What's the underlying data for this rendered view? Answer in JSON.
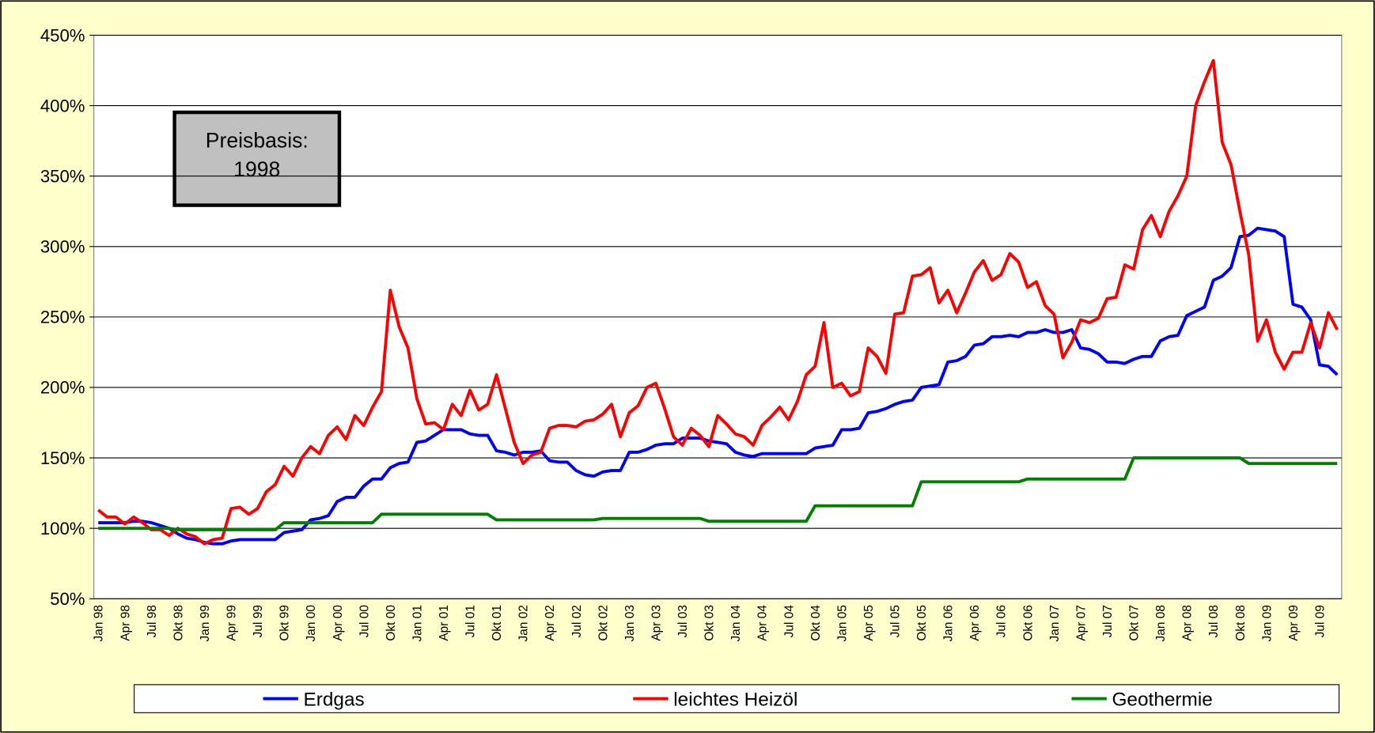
{
  "chart_data": {
    "type": "line",
    "annotation": [
      "Preisbasis:",
      "1998"
    ],
    "categories": [
      "Jan 98",
      null,
      null,
      "Apr 98",
      null,
      null,
      "Jul 98",
      null,
      null,
      "Okt 98",
      null,
      null,
      "Jan 99",
      null,
      null,
      "Apr 99",
      null,
      null,
      "Jul 99",
      null,
      null,
      "Okt 99",
      null,
      null,
      "Jan 00",
      null,
      null,
      "Apr 00",
      null,
      null,
      "Jul 00",
      null,
      null,
      "Okt 00",
      null,
      null,
      "Jan 01",
      null,
      null,
      "Apr 01",
      null,
      null,
      "Jul 01",
      null,
      null,
      "Okt 01",
      null,
      null,
      "Jan 02",
      null,
      null,
      "Apr 02",
      null,
      null,
      "Jul 02",
      null,
      null,
      "Okt 02",
      null,
      null,
      "Jan 03",
      null,
      null,
      "Apr 03",
      null,
      null,
      "Jul 03",
      null,
      null,
      "Okt 03",
      null,
      null,
      "Jan 04",
      null,
      null,
      "Apr 04",
      null,
      null,
      "Jul 04",
      null,
      null,
      "Okt 04",
      null,
      null,
      "Jan 05",
      null,
      null,
      "Apr 05",
      null,
      null,
      "Jul 05",
      null,
      null,
      "Okt 05",
      null,
      null,
      "Jan 06",
      null,
      null,
      "Apr 06",
      null,
      null,
      "Jul 06",
      null,
      null,
      "Okt 06",
      null,
      null,
      "Jan 07",
      null,
      null,
      "Apr 07",
      null,
      null,
      "Jul 07",
      null,
      null,
      "Okt 07",
      null,
      null,
      "Jan 08",
      null,
      null,
      "Apr 08",
      null,
      null,
      "Jul 08",
      null,
      null,
      "Okt 08",
      null,
      null,
      "Jan 09",
      null,
      null,
      "Apr 09",
      null,
      null,
      "Jul 09",
      null,
      null
    ],
    "series": [
      {
        "name": "Erdgas",
        "color": "#0000ff",
        "values": [
          104,
          104,
          104,
          104,
          105,
          105,
          104,
          102,
          100,
          96,
          93,
          92,
          90,
          89,
          89,
          91,
          92,
          92,
          92,
          92,
          92,
          97,
          98,
          99,
          106,
          107,
          109,
          119,
          122,
          122,
          130,
          135,
          135,
          143,
          146,
          147,
          161,
          162,
          166,
          170,
          170,
          170,
          167,
          166,
          166,
          155,
          154,
          152,
          154,
          154,
          155,
          148,
          147,
          147,
          141,
          138,
          137,
          140,
          141,
          141,
          154,
          154,
          156,
          159,
          160,
          160,
          164,
          164,
          164,
          162,
          161,
          160,
          154,
          152,
          151,
          153,
          153,
          153,
          153,
          153,
          153,
          157,
          158,
          159,
          170,
          170,
          171,
          182,
          183,
          185,
          188,
          190,
          191,
          200,
          201,
          202,
          218,
          219,
          222,
          230,
          231,
          236,
          236,
          237,
          236,
          239,
          239,
          241,
          239,
          239,
          241,
          228,
          227,
          224,
          218,
          218,
          217,
          220,
          222,
          222,
          233,
          236,
          237,
          251,
          254,
          257,
          276,
          279,
          285,
          307,
          308,
          313,
          312,
          311,
          307,
          259,
          257,
          248,
          216,
          215,
          209
        ]
      },
      {
        "name": "leichtes Heizöl",
        "color": "#ff0000",
        "values": [
          113,
          108,
          108,
          103,
          108,
          104,
          99,
          99,
          95,
          100,
          96,
          94,
          89,
          92,
          93,
          114,
          115,
          110,
          114,
          126,
          131,
          144,
          137,
          150,
          158,
          153,
          166,
          172,
          163,
          180,
          173,
          186,
          197,
          269,
          243,
          228,
          192,
          174,
          175,
          170,
          188,
          180,
          198,
          184,
          188,
          209,
          185,
          161,
          146,
          152,
          154,
          171,
          173,
          173,
          172,
          176,
          177,
          181,
          188,
          165,
          182,
          187,
          200,
          203,
          185,
          165,
          159,
          171,
          166,
          158,
          180,
          174,
          167,
          165,
          159,
          173,
          179,
          186,
          177,
          190,
          209,
          215,
          246,
          200,
          203,
          194,
          197,
          228,
          222,
          210,
          252,
          253,
          279,
          280,
          285,
          260,
          269,
          253,
          267,
          282,
          290,
          276,
          280,
          295,
          289,
          271,
          275,
          258,
          252,
          221,
          232,
          248,
          246,
          249,
          263,
          264,
          287,
          284,
          312,
          322,
          307,
          325,
          336,
          350,
          400,
          417,
          432,
          374,
          358,
          325,
          294,
          233,
          248,
          225,
          213,
          225,
          225,
          246,
          228,
          253,
          241
        ]
      },
      {
        "name": "Geothermie",
        "color": "#008000",
        "values": [
          100,
          100,
          100,
          100,
          100,
          100,
          100,
          100,
          100,
          99,
          99,
          99,
          99,
          99,
          99,
          99,
          99,
          99,
          99,
          99,
          99,
          104,
          104,
          104,
          104,
          104,
          104,
          104,
          104,
          104,
          104,
          104,
          110,
          110,
          110,
          110,
          110,
          110,
          110,
          110,
          110,
          110,
          110,
          110,
          110,
          106,
          106,
          106,
          106,
          106,
          106,
          106,
          106,
          106,
          106,
          106,
          106,
          107,
          107,
          107,
          107,
          107,
          107,
          107,
          107,
          107,
          107,
          107,
          107,
          105,
          105,
          105,
          105,
          105,
          105,
          105,
          105,
          105,
          105,
          105,
          105,
          116,
          116,
          116,
          116,
          116,
          116,
          116,
          116,
          116,
          116,
          116,
          116,
          133,
          133,
          133,
          133,
          133,
          133,
          133,
          133,
          133,
          133,
          133,
          133,
          135,
          135,
          135,
          135,
          135,
          135,
          135,
          135,
          135,
          135,
          135,
          135,
          150,
          150,
          150,
          150,
          150,
          150,
          150,
          150,
          150,
          150,
          150,
          150,
          150,
          146,
          146,
          146,
          146,
          146,
          146,
          146,
          146,
          146,
          146,
          146
        ]
      }
    ],
    "ylim": [
      50,
      450
    ],
    "yticks": [
      {
        "value": 50,
        "label": "50%"
      },
      {
        "value": 100,
        "label": "100%"
      },
      {
        "value": 150,
        "label": "150%"
      },
      {
        "value": 200,
        "label": "200%"
      },
      {
        "value": 250,
        "label": "250%"
      },
      {
        "value": 300,
        "label": "300%"
      },
      {
        "value": 350,
        "label": "350%"
      },
      {
        "value": 400,
        "label": "400%"
      },
      {
        "value": 450,
        "label": "450%"
      }
    ],
    "grid": true,
    "legend": "bottom"
  }
}
